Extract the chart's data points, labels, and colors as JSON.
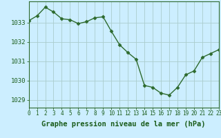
{
  "x": [
    0,
    1,
    2,
    3,
    4,
    5,
    6,
    7,
    8,
    9,
    10,
    11,
    12,
    13,
    14,
    15,
    16,
    17,
    18,
    19,
    20,
    21,
    22,
    23
  ],
  "y": [
    1033.1,
    1033.35,
    1033.8,
    1033.55,
    1033.2,
    1033.15,
    1032.95,
    1033.05,
    1033.25,
    1033.3,
    1032.55,
    1031.85,
    1031.45,
    1031.1,
    1029.75,
    1029.65,
    1029.35,
    1029.25,
    1029.65,
    1030.3,
    1030.5,
    1031.2,
    1031.4,
    1031.6
  ],
  "line_color": "#2d6a2d",
  "marker": "D",
  "markersize": 2.5,
  "linewidth": 1.0,
  "bg_color": "#cceeff",
  "grid_color": "#aacccc",
  "xlabel": "Graphe pression niveau de la mer (hPa)",
  "xlabel_fontsize": 7.5,
  "ylabel_ticks": [
    1029,
    1030,
    1031,
    1032,
    1033
  ],
  "xlim": [
    0,
    23
  ],
  "ylim": [
    1028.6,
    1034.1
  ],
  "xticks": [
    0,
    1,
    2,
    3,
    4,
    5,
    6,
    7,
    8,
    9,
    10,
    11,
    12,
    13,
    14,
    15,
    16,
    17,
    18,
    19,
    20,
    21,
    22,
    23
  ],
  "tick_fontsize": 5.5,
  "tick_color": "#1a5c1a",
  "spine_color": "#2d6a2d",
  "ytick_fontsize": 6.5
}
